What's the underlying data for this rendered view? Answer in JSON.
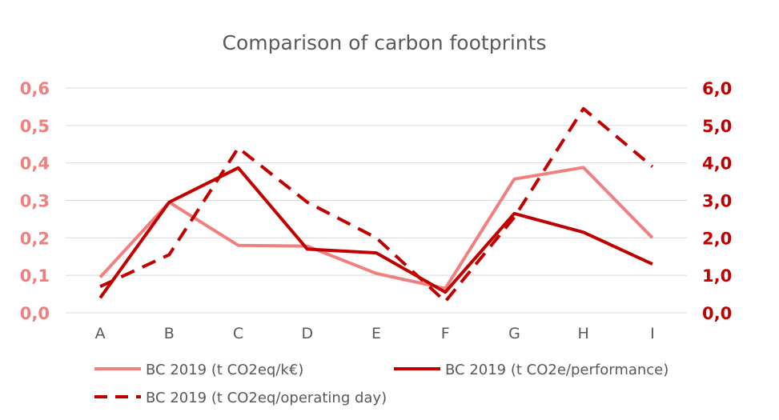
{
  "chart_data": {
    "type": "line",
    "title": "Comparison of carbon footprints",
    "categories": [
      "A",
      "B",
      "C",
      "D",
      "E",
      "F",
      "G",
      "H",
      "I"
    ],
    "y_left": {
      "range": [
        0,
        0.6
      ],
      "ticks": [
        "0,0",
        "0,1",
        "0,2",
        "0,3",
        "0,4",
        "0,5",
        "0,6"
      ],
      "color": "#f08080"
    },
    "y_right": {
      "range": [
        0,
        6
      ],
      "ticks": [
        "0,0",
        "1,0",
        "2,0",
        "3,0",
        "4,0",
        "5,0",
        "6,0"
      ],
      "color": "#c00000"
    },
    "grid": true,
    "legend_position": "bottom",
    "series": [
      {
        "name": "BC 2019 (t CO2eq/k€)",
        "axis": "left",
        "color": "#f08080",
        "dash": "solid",
        "values": [
          0.095,
          0.295,
          0.18,
          0.178,
          0.105,
          0.065,
          0.357,
          0.388,
          0.2
        ]
      },
      {
        "name": "BC 2019 (t CO2e/performance)",
        "axis": "right",
        "color": "#c00000",
        "dash": "solid",
        "values": [
          0.4,
          2.95,
          3.87,
          1.7,
          1.6,
          0.55,
          2.65,
          2.15,
          1.3
        ]
      },
      {
        "name": "BC 2019 (t CO2eq/operating day)",
        "axis": "right",
        "color": "#c00000",
        "dash": "dashed",
        "values": [
          0.7,
          1.55,
          4.4,
          2.95,
          2.0,
          0.3,
          2.55,
          5.45,
          3.9
        ]
      }
    ]
  }
}
